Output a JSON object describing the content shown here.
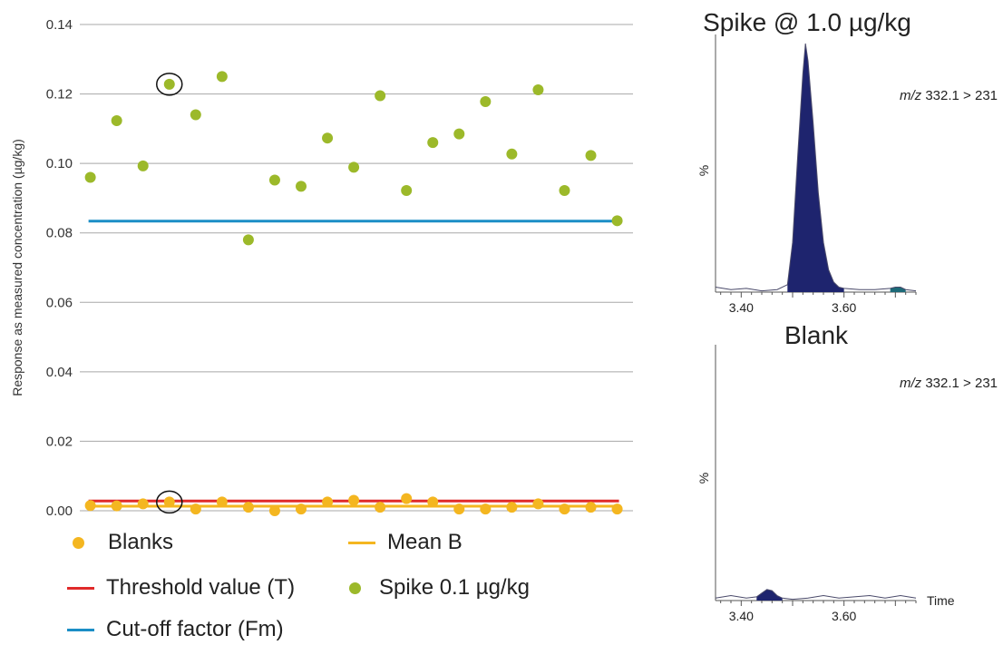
{
  "colors": {
    "spike": "#9cb92a",
    "blank": "#f4b620",
    "threshold": "#e02a2a",
    "cutoff": "#1b8ec6",
    "mean": "#f4b620",
    "peak_fill": "#1e246e",
    "grid": "#a8a8a8",
    "text": "#222222"
  },
  "legend": {
    "blanks": "Blanks",
    "mean_b": "Mean B",
    "threshold": "Threshold value (T)",
    "spike": "Spike 0.1 µg/kg",
    "cutoff": "Cut-off factor (Fm)"
  },
  "chart_data": [
    {
      "type": "scatter",
      "ylabel": "Response as measured concentration (µg/kg)",
      "xlabel": "",
      "ylim": [
        0,
        0.14
      ],
      "yticks": [
        "0.00",
        "0.02",
        "0.04",
        "0.06",
        "0.08",
        "0.10",
        "0.12",
        "0.14"
      ],
      "grid": true,
      "legend_position": "bottom",
      "series": [
        {
          "name": "Spike 0.1 µg/kg",
          "color": "#9cb92a",
          "x": [
            1,
            2,
            3,
            4,
            5,
            6,
            7,
            8,
            9,
            10,
            11,
            12,
            13,
            14,
            15,
            16,
            17,
            18,
            19,
            20,
            21
          ],
          "values": [
            0.096,
            0.1123,
            0.0993,
            0.1228,
            0.114,
            0.125,
            0.078,
            0.0952,
            0.0934,
            0.1073,
            0.0989,
            0.1195,
            0.0922,
            0.106,
            0.1085,
            0.1178,
            0.1027,
            0.1212,
            0.0922,
            0.1023,
            0.0835
          ]
        },
        {
          "name": "Blanks",
          "color": "#f4b620",
          "x": [
            1,
            2,
            3,
            4,
            5,
            6,
            7,
            8,
            9,
            10,
            11,
            12,
            13,
            14,
            15,
            16,
            17,
            18,
            19,
            20,
            21
          ],
          "values": [
            0.0015,
            0.0014,
            0.002,
            0.0025,
            0.0005,
            0.0025,
            0.001,
            0.0,
            0.0005,
            0.0025,
            0.003,
            0.001,
            0.0035,
            0.0025,
            0.0005,
            0.0005,
            0.001,
            0.002,
            0.0005,
            0.001,
            0.0005
          ]
        }
      ],
      "lines": [
        {
          "name": "Cut-off factor (Fm)",
          "value": 0.0834,
          "color": "#1b8ec6"
        },
        {
          "name": "Threshold value (T)",
          "value": 0.0028,
          "color": "#e02a2a"
        },
        {
          "name": "Mean B",
          "value": 0.0013,
          "color": "#f4b620"
        }
      ],
      "circled_point_x": 4
    },
    {
      "type": "area",
      "title": "Spike @ 1.0 µg/kg",
      "annotation_italic": "m/z",
      "annotation": " 332.1 > 231",
      "ylabel": "%",
      "xticks": [
        "3.40",
        "3.60"
      ],
      "xlim": [
        3.35,
        3.74
      ],
      "x": [
        3.35,
        3.38,
        3.41,
        3.44,
        3.47,
        3.49,
        3.5,
        3.51,
        3.52,
        3.525,
        3.53,
        3.54,
        3.55,
        3.56,
        3.57,
        3.58,
        3.59,
        3.6,
        3.63,
        3.66,
        3.69,
        3.7,
        3.71,
        3.72,
        3.74
      ],
      "values": [
        2,
        1,
        1.5,
        0.5,
        1,
        3,
        20,
        55,
        88,
        100,
        93,
        68,
        40,
        20,
        9,
        4,
        2,
        1.5,
        1,
        1,
        1.5,
        2,
        2,
        1,
        0.5
      ],
      "peak_range": [
        3.48,
        3.62
      ],
      "minor_peak_range": [
        3.69,
        3.72
      ]
    },
    {
      "type": "area",
      "title": "Blank",
      "annotation_italic": "m/z",
      "annotation": " 332.1 > 231",
      "ylabel": "%",
      "xlabel": "Time",
      "xticks": [
        "3.40",
        "3.60"
      ],
      "xlim": [
        3.35,
        3.74
      ],
      "x": [
        3.35,
        3.38,
        3.41,
        3.43,
        3.44,
        3.45,
        3.46,
        3.47,
        3.48,
        3.5,
        3.53,
        3.56,
        3.59,
        3.62,
        3.65,
        3.68,
        3.71,
        3.74
      ],
      "values": [
        1,
        2,
        1,
        1.5,
        3,
        4.5,
        4,
        2,
        1,
        0.5,
        1,
        2,
        1,
        1.5,
        2,
        1,
        2,
        1
      ],
      "peak_range": [
        3.43,
        3.48
      ]
    }
  ]
}
